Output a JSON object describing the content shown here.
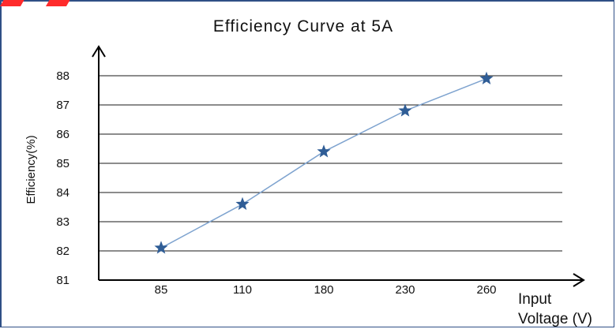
{
  "chart_data": {
    "type": "line",
    "title": "Efficiency Curve at 5A",
    "xlabel_line1": "Input",
    "xlabel_line2": "Voltage (V)",
    "ylabel": "Efficiency(%)",
    "categories": [
      "85",
      "110",
      "180",
      "230",
      "260"
    ],
    "series": [
      {
        "values": [
          82.1,
          83.6,
          85.4,
          86.8,
          87.9
        ]
      }
    ],
    "ylim": [
      81,
      88
    ],
    "yticks": [
      81,
      82,
      83,
      84,
      85,
      86,
      87,
      88
    ],
    "grid": true,
    "marker": "star",
    "line_color": "#7ea3cf",
    "marker_color": "#2f5d96",
    "legend": "none"
  }
}
